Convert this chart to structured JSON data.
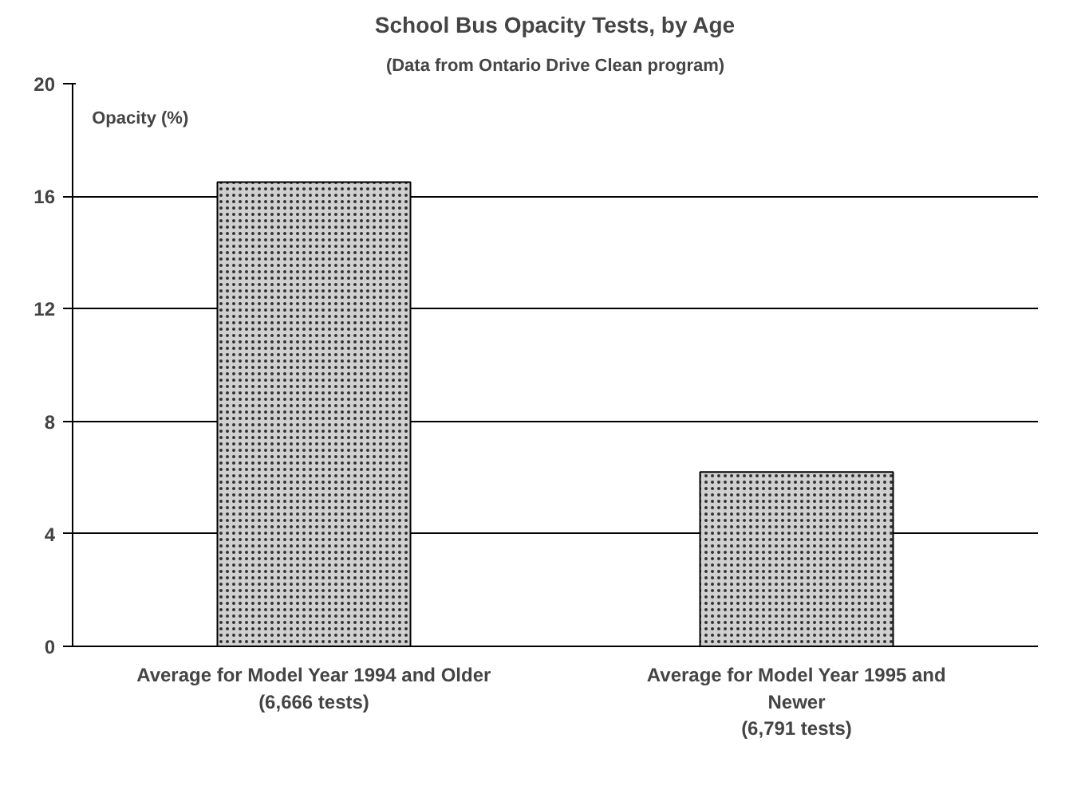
{
  "chart_data": {
    "type": "bar",
    "title": "School Bus Opacity Tests, by Age",
    "subtitle": "(Data from Ontario Drive Clean program)",
    "ylabel": "Opacity (%)",
    "categories": [
      "Average for Model Year 1994 and Older\n(6,666 tests)",
      "Average for Model Year 1995 and\nNewer\n(6,791 tests)"
    ],
    "values": [
      16.5,
      6.2
    ],
    "color": "#d0d0d0",
    "ylim": [
      0,
      20
    ],
    "yticks": [
      0,
      4,
      8,
      12,
      16,
      20
    ],
    "grid": "y"
  }
}
